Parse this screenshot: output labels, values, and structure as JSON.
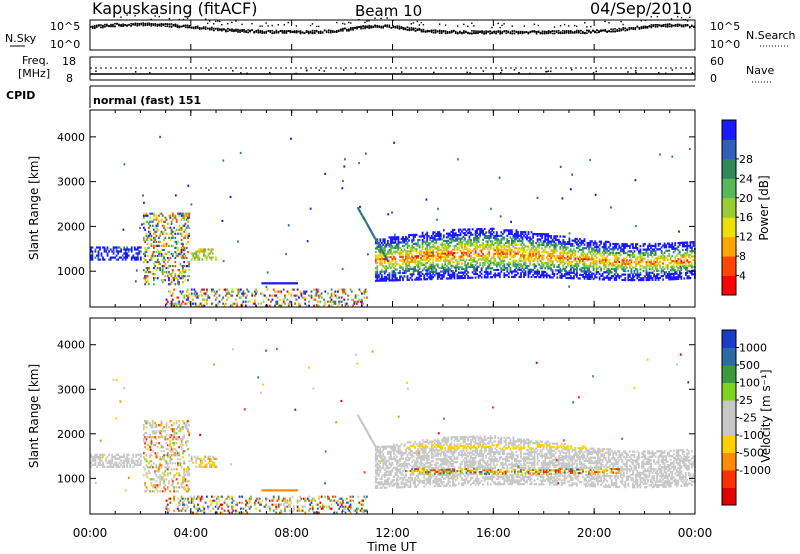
{
  "header": {
    "station": "Kapuskasing (fitACF)",
    "beam": "Beam 10",
    "date": "04/Sep/2010"
  },
  "status_panels": {
    "nsky_label": "N.Sky",
    "nsearch_label": "N.Search",
    "nsky_ticks": [
      "10^5",
      "10^0"
    ],
    "nsearch_ticks": [
      "10^5",
      "10^0"
    ],
    "freq_label_1": "Freq.",
    "freq_label_2": "[MHz]",
    "freq_ticks": [
      "18",
      "8"
    ],
    "nave_label": "Nave",
    "nave_ticks": [
      "60",
      "0"
    ],
    "cpid_label": "CPID",
    "cpid_value": "normal (fast) 151"
  },
  "chart_data": [
    {
      "type": "heatmap",
      "name": "power",
      "ylabel": "Slant Range [km]",
      "yticks": [
        "1000",
        "2000",
        "3000",
        "4000"
      ],
      "ylim": [
        200,
        4600
      ],
      "xlim": [
        0,
        24
      ],
      "colorbar_label": "Power [dB]",
      "colorbar_ticks": [
        "4",
        "8",
        "12",
        "16",
        "20",
        "24",
        "28"
      ],
      "colors": [
        "#1a1aff",
        "#2f5fb8",
        "#2e8b57",
        "#5ab85a",
        "#9acd32",
        "#f0e000",
        "#ffa500",
        "#ff4500",
        "#ff0000"
      ],
      "features": [
        {
          "t0": 2.1,
          "t1": 3.8,
          "r0": 700,
          "r1": 2300,
          "level": "mixed"
        },
        {
          "t0": 0.0,
          "t1": 2.0,
          "r0": 1200,
          "r1": 1600,
          "level": "low"
        },
        {
          "t0": 4.0,
          "t1": 5.0,
          "r0": 1200,
          "r1": 1500,
          "level": "mid"
        },
        {
          "t0": 6.8,
          "t1": 8.2,
          "r0": 650,
          "r1": 800,
          "level": "low"
        },
        {
          "t0": 3.0,
          "t1": 11.0,
          "r0": 200,
          "r1": 600,
          "level": "noise"
        },
        {
          "t0": 11.3,
          "t1": 24.0,
          "r0": 800,
          "r1": 1800,
          "level": "main"
        }
      ]
    },
    {
      "type": "heatmap",
      "name": "velocity",
      "ylabel": "Slant Range [km]",
      "yticks": [
        "1000",
        "2000",
        "3000",
        "4000"
      ],
      "ylim": [
        200,
        4600
      ],
      "xlim": [
        0,
        24
      ],
      "colorbar_label": "Velocity [m s⁻¹]",
      "colorbar_ticks": [
        "1000",
        "500",
        "100",
        "25",
        "-25",
        "-100",
        "-500",
        "-1000"
      ],
      "colors": [
        "#1a3cc8",
        "#2d6aa8",
        "#3c9a3c",
        "#7ed321",
        "#c8c8c8",
        "#c8c8c8",
        "#ffd000",
        "#ff8c00",
        "#ff3000",
        "#e00000"
      ]
    }
  ],
  "xaxis": {
    "ticks": [
      "00:00",
      "04:00",
      "08:00",
      "12:00",
      "16:00",
      "20:00",
      "00:00"
    ],
    "label": "Time UT"
  }
}
